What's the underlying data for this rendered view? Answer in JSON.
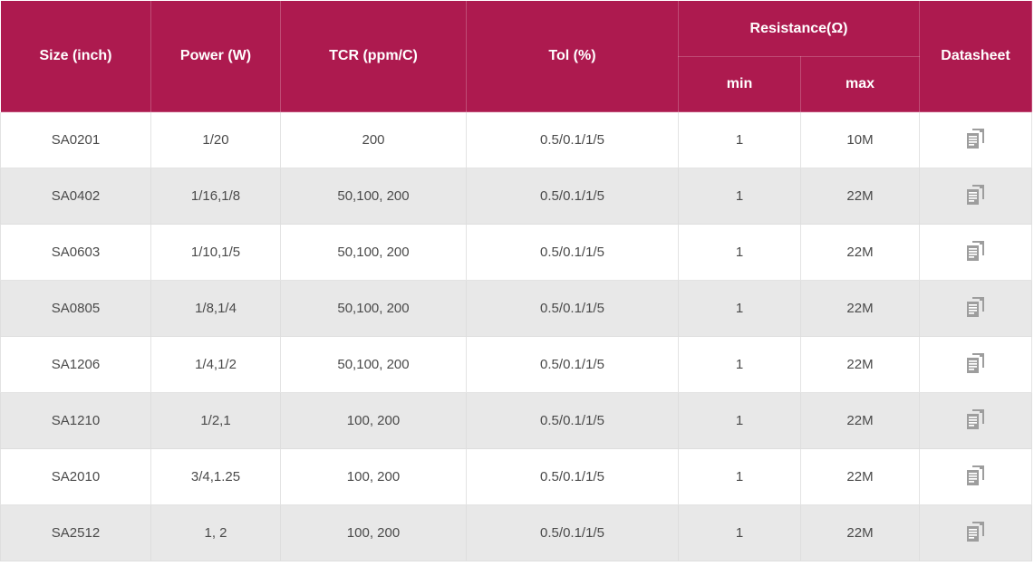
{
  "colors": {
    "header_bg": "#ad1a4f",
    "header_text": "#ffffff",
    "row_alt_bg": "#e8e8e8",
    "body_text": "#4a4a4a",
    "grid_line": "#e3e3e3",
    "icon_gray": "#9d9d9d"
  },
  "table": {
    "headers": {
      "size": "Size (inch)",
      "power": "Power (W)",
      "tcr": "TCR (ppm/C)",
      "tol": "Tol (%)",
      "resistance_group": "Resistance(Ω)",
      "res_min": "min",
      "res_max": "max",
      "datasheet": "Datasheet"
    },
    "datasheet_icon": "document-copy-icon",
    "rows": [
      {
        "size": "SA0201",
        "power": "1/20",
        "tcr": "200",
        "tol": "0.5/0.1/1/5",
        "min": "1",
        "max": "10M"
      },
      {
        "size": "SA0402",
        "power": "1/16,1/8",
        "tcr": "50,100, 200",
        "tol": "0.5/0.1/1/5",
        "min": "1",
        "max": "22M"
      },
      {
        "size": "SA0603",
        "power": "1/10,1/5",
        "tcr": "50,100, 200",
        "tol": "0.5/0.1/1/5",
        "min": "1",
        "max": "22M"
      },
      {
        "size": "SA0805",
        "power": "1/8,1/4",
        "tcr": "50,100, 200",
        "tol": "0.5/0.1/1/5",
        "min": "1",
        "max": "22M"
      },
      {
        "size": "SA1206",
        "power": "1/4,1/2",
        "tcr": "50,100, 200",
        "tol": "0.5/0.1/1/5",
        "min": "1",
        "max": "22M"
      },
      {
        "size": "SA1210",
        "power": "1/2,1",
        "tcr": "100, 200",
        "tol": "0.5/0.1/1/5",
        "min": "1",
        "max": "22M"
      },
      {
        "size": "SA2010",
        "power": "3/4,1.25",
        "tcr": "100, 200",
        "tol": "0.5/0.1/1/5",
        "min": "1",
        "max": "22M"
      },
      {
        "size": "SA2512",
        "power": "1, 2",
        "tcr": "100, 200",
        "tol": "0.5/0.1/1/5",
        "min": "1",
        "max": "22M"
      }
    ]
  }
}
